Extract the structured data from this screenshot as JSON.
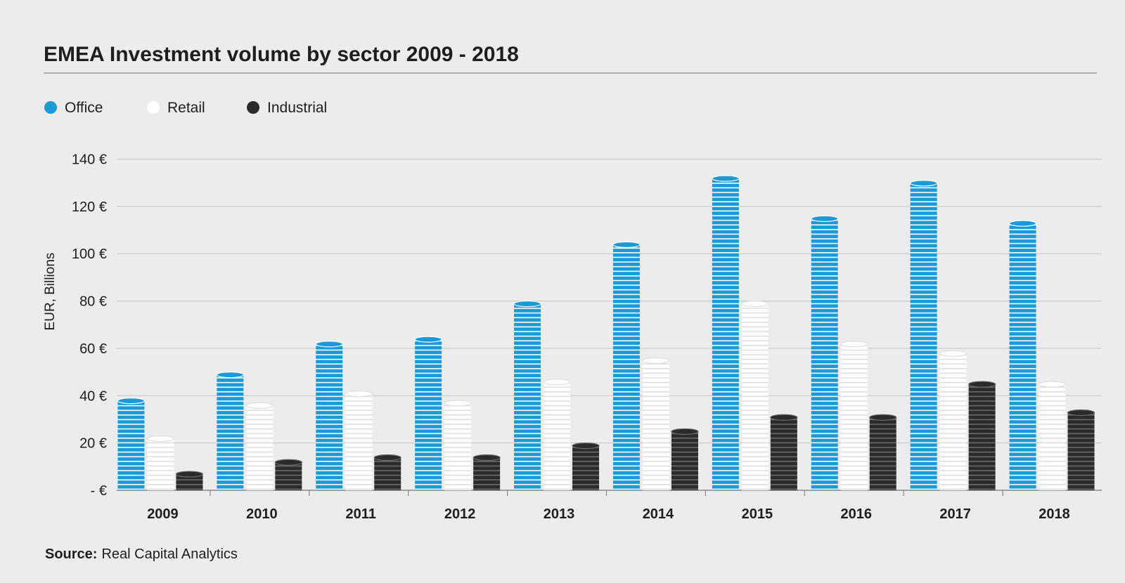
{
  "chart_data": {
    "type": "bar",
    "title": "EMEA Investment volume by sector 2009 - 2018",
    "y_axis_label": "EUR, Billions",
    "source_label": "Source:",
    "source": "Real Capital Analytics",
    "categories": [
      "2009",
      "2010",
      "2011",
      "2012",
      "2013",
      "2014",
      "2015",
      "2016",
      "2017",
      "2018"
    ],
    "series": [
      {
        "name": "Office",
        "color": "#1a9ad6",
        "values": [
          39,
          50,
          63,
          65,
          80,
          105,
          133,
          116,
          131,
          114
        ]
      },
      {
        "name": "Retail",
        "color": "#ffffff",
        "values": [
          23,
          37,
          42,
          38,
          47,
          56,
          80,
          63,
          59,
          46
        ]
      },
      {
        "name": "Industrial",
        "color": "#2b2b2b",
        "values": [
          8,
          13,
          15,
          15,
          20,
          26,
          32,
          32,
          46,
          34
        ]
      }
    ],
    "ylim": [
      0,
      140
    ],
    "yticks": [
      {
        "value": 0,
        "label": "- €"
      },
      {
        "value": 20,
        "label": "20 €"
      },
      {
        "value": 40,
        "label": "40 €"
      },
      {
        "value": 60,
        "label": "60 €"
      },
      {
        "value": 80,
        "label": "80 €"
      },
      {
        "value": 100,
        "label": "100 €"
      },
      {
        "value": 120,
        "label": "120 €"
      },
      {
        "value": 140,
        "label": "140 €"
      }
    ],
    "grid": true
  }
}
